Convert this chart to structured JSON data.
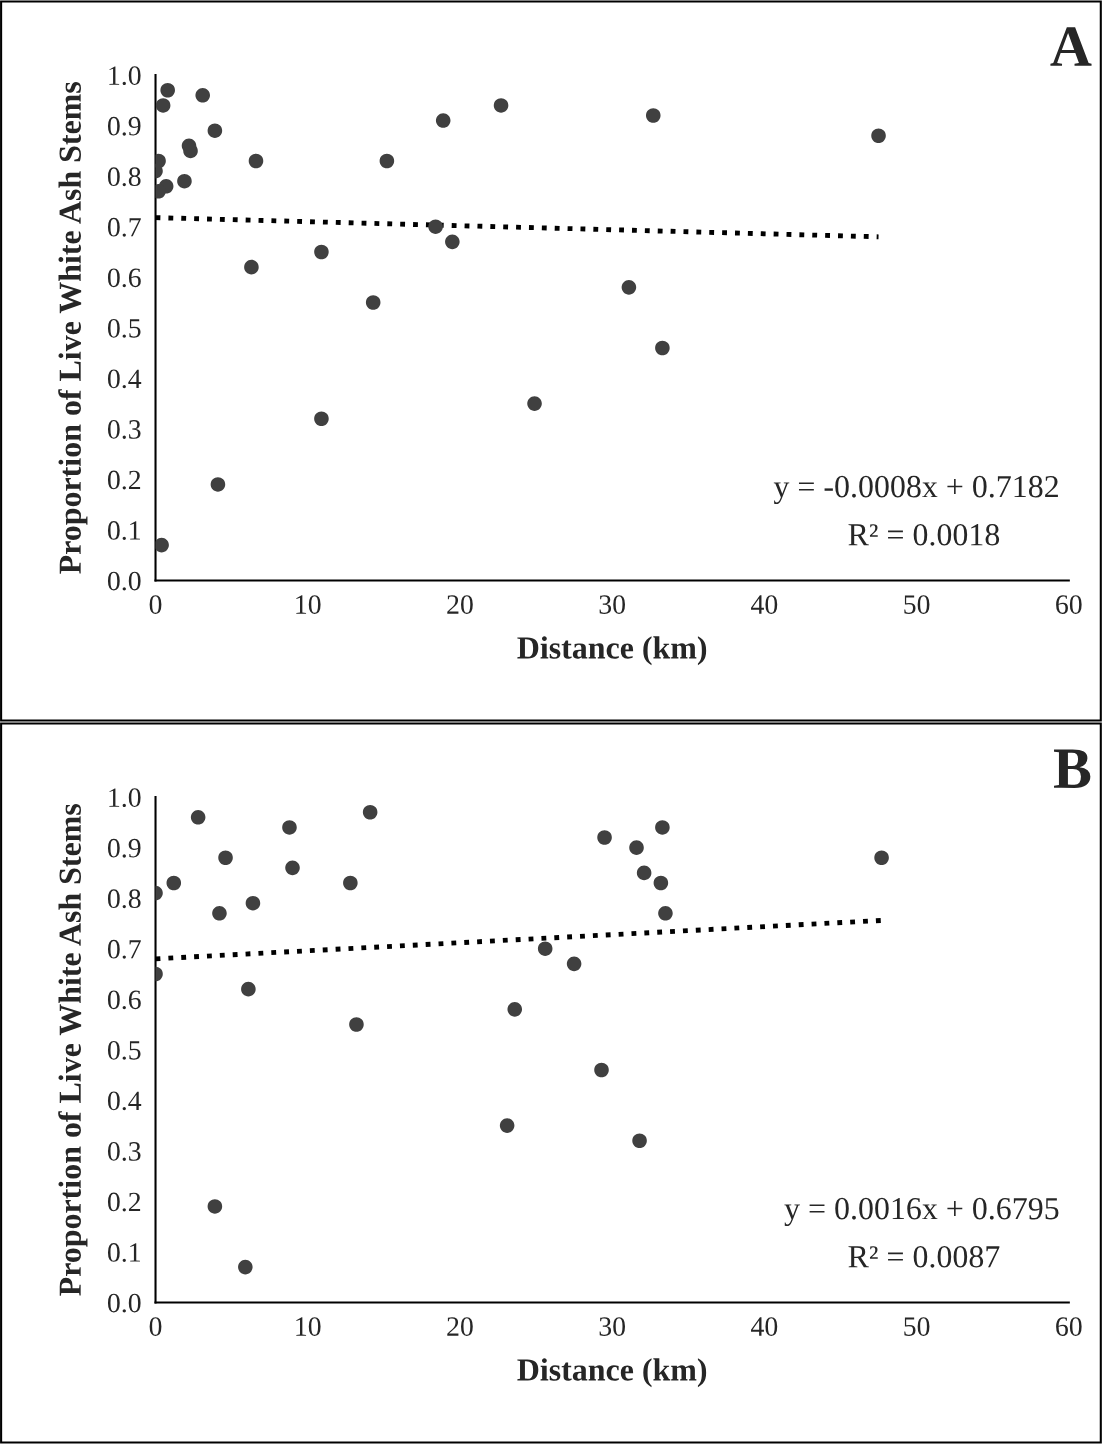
{
  "chart_data": [
    {
      "type": "scatter",
      "xlabel": "Distance (km)",
      "ylabel": "Proportion of Live White Ash Stems",
      "xlim": [
        0,
        60
      ],
      "xticks": [
        0,
        10,
        20,
        30,
        40,
        50,
        60
      ],
      "ylim": [
        0.0,
        1.0
      ],
      "yticks": [
        {
          "value": 0.0,
          "label": "0.0"
        },
        {
          "value": 0.1,
          "label": "0.1"
        },
        {
          "value": 0.2,
          "label": "0.2"
        },
        {
          "value": 0.3,
          "label": "0.3"
        },
        {
          "value": 0.4,
          "label": "0.4"
        },
        {
          "value": 0.5,
          "label": "0.5"
        },
        {
          "value": 0.6,
          "label": "0.6"
        },
        {
          "value": 0.7,
          "label": "0.7"
        },
        {
          "value": 0.8,
          "label": "0.8"
        },
        {
          "value": 0.9,
          "label": "0.9"
        },
        {
          "value": 1.0,
          "label": "1.0"
        }
      ],
      "grid": false,
      "marker": "circle",
      "annotations": [
        "A",
        "y = -0.0008x + 0.7182",
        "R² = 0.0018"
      ],
      "series": [
        {
          "color": "#404040",
          "x": [
            0.8,
            0.5,
            3.1,
            3.9,
            2.2,
            2.3,
            0.2,
            0.0,
            1.9,
            0.7,
            0.2,
            6.6,
            15.2,
            10.9,
            6.3,
            14.3,
            10.9,
            4.1,
            0.4,
            18.9,
            22.7,
            32.7,
            47.5,
            18.4,
            19.5,
            31.1,
            33.3,
            24.9
          ],
          "values": [
            0.97,
            0.94,
            0.96,
            0.89,
            0.86,
            0.85,
            0.83,
            0.81,
            0.79,
            0.78,
            0.77,
            0.83,
            0.83,
            0.65,
            0.62,
            0.55,
            0.32,
            0.19,
            0.07,
            0.91,
            0.94,
            0.92,
            0.88,
            0.7,
            0.67,
            0.58,
            0.46,
            0.35
          ]
        },
        {
          "type": "line",
          "color": "#000000",
          "line_style": "dotted",
          "marker": "none",
          "x": [
            0,
            47.5
          ],
          "values": [
            0.718,
            0.68
          ]
        }
      ]
    },
    {
      "type": "scatter",
      "xlabel": "Distance (km)",
      "ylabel": "Proportion of Live White Ash Stems",
      "xlim": [
        0,
        60
      ],
      "xticks": [
        0,
        10,
        20,
        30,
        40,
        50,
        60
      ],
      "ylim": [
        0.0,
        1.0
      ],
      "yticks": [
        {
          "value": 0.0,
          "label": "0.0"
        },
        {
          "value": 0.1,
          "label": "0.1"
        },
        {
          "value": 0.2,
          "label": "0.2"
        },
        {
          "value": 0.3,
          "label": "0.3"
        },
        {
          "value": 0.4,
          "label": "0.4"
        },
        {
          "value": 0.5,
          "label": "0.5"
        },
        {
          "value": 0.6,
          "label": "0.6"
        },
        {
          "value": 0.7,
          "label": "0.7"
        },
        {
          "value": 0.8,
          "label": "0.8"
        },
        {
          "value": 0.9,
          "label": "0.9"
        },
        {
          "value": 1.0,
          "label": "1.0"
        }
      ],
      "grid": false,
      "marker": "circle",
      "annotations": [
        "B",
        "y = 0.0016x + 0.6795",
        "R² = 0.0087"
      ],
      "series": [
        {
          "color": "#404040",
          "x": [
            2.8,
            8.8,
            14.1,
            4.6,
            9.0,
            1.2,
            0.0,
            12.8,
            4.2,
            6.4,
            0.0,
            6.1,
            13.2,
            23.6,
            23.1,
            3.9,
            5.9,
            29.5,
            31.6,
            33.3,
            32.1,
            33.2,
            33.5,
            25.6,
            27.5,
            29.3,
            31.8,
            47.7
          ],
          "values": [
            0.96,
            0.94,
            0.97,
            0.88,
            0.86,
            0.83,
            0.81,
            0.83,
            0.77,
            0.79,
            0.65,
            0.62,
            0.55,
            0.58,
            0.35,
            0.19,
            0.07,
            0.92,
            0.9,
            0.94,
            0.85,
            0.83,
            0.77,
            0.7,
            0.67,
            0.46,
            0.32,
            0.88
          ]
        },
        {
          "type": "line",
          "color": "#000000",
          "line_style": "dotted",
          "marker": "none",
          "x": [
            0,
            47.7
          ],
          "values": [
            0.68,
            0.756
          ]
        }
      ]
    }
  ]
}
